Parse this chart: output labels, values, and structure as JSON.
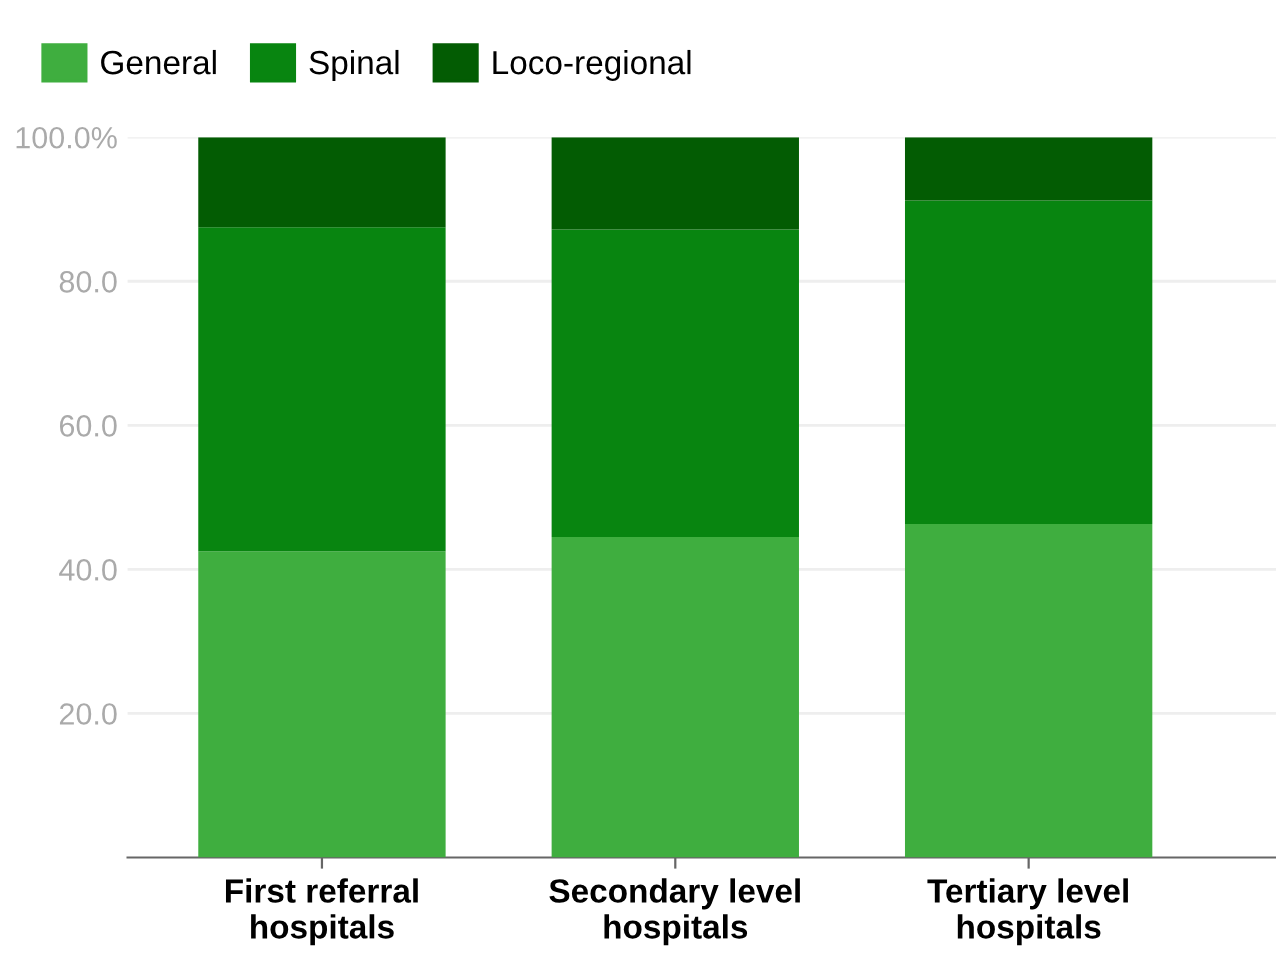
{
  "chart_data": {
    "type": "bar",
    "stacked": true,
    "categories": [
      "First referral\nhospitals",
      "Secondary level\nhospitals",
      "Tertiary level\nhospitals"
    ],
    "series": [
      {
        "name": "General",
        "color": "#3fae3f",
        "values": [
          42.5,
          44.5,
          46.3
        ]
      },
      {
        "name": "Spinal",
        "color": "#088510",
        "values": [
          45.0,
          42.7,
          44.9
        ]
      },
      {
        "name": "Loco-regional",
        "color": "#035c03",
        "values": [
          12.5,
          12.8,
          8.8
        ]
      }
    ],
    "ylim": [
      0,
      100
    ],
    "yticks": [
      {
        "value": 20,
        "label": "20.0"
      },
      {
        "value": 40,
        "label": "40.0"
      },
      {
        "value": 60,
        "label": "60.0"
      },
      {
        "value": 80,
        "label": "80.0"
      },
      {
        "value": 100,
        "label": "100.0%"
      }
    ],
    "grid": "y",
    "legend": "top left"
  }
}
